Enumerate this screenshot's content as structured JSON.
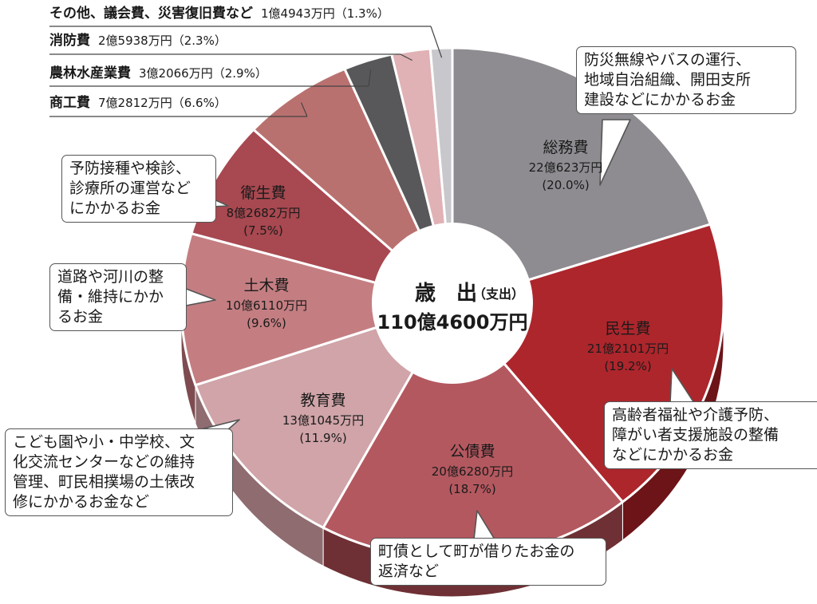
{
  "center": {
    "title": "歳　出",
    "sub": "（支出）",
    "total": "110億4600万円"
  },
  "callouts": {
    "soumu": "防災無線やバスの運行、\n地域自治組織、開田支所\n建設などにかかるお金",
    "minsei": "高齢者福祉や介護予防、\n障がい者支援施設の整備\nなどにかかるお金",
    "kosai": "町債として町が借りたお金の\n返済など",
    "kyoiku": "こども園や小・中学校、文\n化交流センターなどの維持\n管理、町民相撲場の土俵改\n修にかかるお金など",
    "doboku": "道路や河川の整\n備・維持にかか\nるお金",
    "eisei": "予防接種や検診、\n診療所の運営など\nにかかるお金"
  },
  "chart_data": {
    "type": "pie",
    "title": "歳出（支出）110億4600万円",
    "slices": [
      {
        "name": "総務費",
        "amount": "22億623万円",
        "percent": 20.0,
        "color": "#8e8c91",
        "side": "#5c5b5f"
      },
      {
        "name": "民生費",
        "amount": "21億2101万円",
        "percent": 19.2,
        "color": "#ad262c",
        "side": "#6c1418"
      },
      {
        "name": "公債費",
        "amount": "20億6280万円",
        "percent": 18.7,
        "color": "#b4585f",
        "side": "#6e3034"
      },
      {
        "name": "教育費",
        "amount": "13億1045万円",
        "percent": 11.9,
        "color": "#d0a4a8",
        "side": "#8e6c70"
      },
      {
        "name": "土木費",
        "amount": "10億6110万円",
        "percent": 9.6,
        "color": "#c47e82",
        "side": "#7e4c50"
      },
      {
        "name": "衛生費",
        "amount": "8億2682万円",
        "percent": 7.5,
        "color": "#a84850",
        "side": "#6a2a30"
      },
      {
        "name": "商工費",
        "amount": "7億2812万円",
        "percent": 6.6,
        "color": "#b9716f",
        "side": "#764444"
      },
      {
        "name": "農林水産業費",
        "amount": "3億2066万円",
        "percent": 2.9,
        "color": "#58585a",
        "side": "#353536"
      },
      {
        "name": "消防費",
        "amount": "2億5938万円",
        "percent": 2.3,
        "color": "#e0b2b5",
        "side": "#9a7a7c"
      },
      {
        "name": "その他、議会費、災害復旧費など",
        "amount": "1億4943万円",
        "percent": 1.3,
        "color": "#c8c7cb",
        "side": "#8a898c"
      }
    ]
  }
}
